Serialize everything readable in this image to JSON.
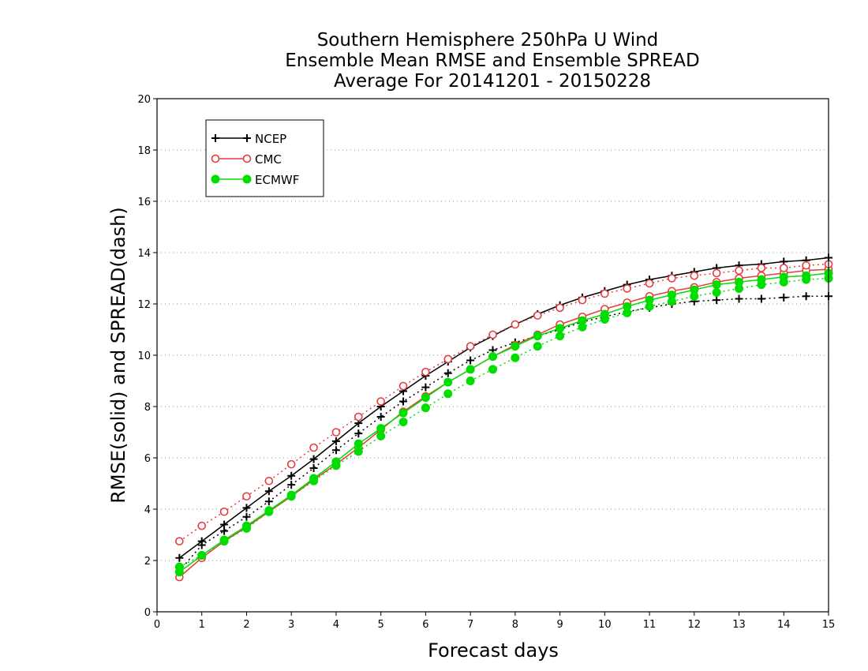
{
  "chart_data": {
    "type": "line",
    "title_lines": [
      "Southern Hemisphere 250hPa U Wind",
      "Ensemble Mean RMSE and Ensemble SPREAD",
      "Average For 20141201 - 20150228"
    ],
    "xlabel": "Forecast days",
    "ylabel": "RMSE(solid) and SPREAD(dash)",
    "xlim": [
      0,
      15
    ],
    "ylim": [
      0,
      20
    ],
    "xticks": [
      0,
      1,
      2,
      3,
      4,
      5,
      6,
      7,
      8,
      9,
      10,
      11,
      12,
      13,
      14,
      15
    ],
    "yticks": [
      0,
      2,
      4,
      6,
      8,
      10,
      12,
      14,
      16,
      18,
      20
    ],
    "grid": "horizontal dotted",
    "legend_position": "top-left",
    "x": [
      0.5,
      1,
      1.5,
      2,
      2.5,
      3,
      3.5,
      4,
      4.5,
      5,
      5.5,
      6,
      6.5,
      7,
      7.5,
      8,
      8.5,
      9,
      9.5,
      10,
      10.5,
      11,
      11.5,
      12,
      12.5,
      13,
      13.5,
      14,
      14.5,
      15
    ],
    "series": [
      {
        "name": "NCEP",
        "metric": "rmse",
        "style": "solid",
        "color": "#000000",
        "marker": "plus",
        "values": [
          2.1,
          2.75,
          3.4,
          4.05,
          4.7,
          5.3,
          5.95,
          6.65,
          7.35,
          8.0,
          8.6,
          9.2,
          9.75,
          10.3,
          10.75,
          11.2,
          11.6,
          11.95,
          12.25,
          12.5,
          12.75,
          12.95,
          13.1,
          13.25,
          13.4,
          13.5,
          13.55,
          13.65,
          13.7,
          13.8
        ]
      },
      {
        "name": "NCEP",
        "metric": "spread",
        "style": "dash",
        "color": "#000000",
        "marker": "plus",
        "values": [
          1.6,
          2.6,
          3.15,
          3.7,
          4.3,
          4.95,
          5.6,
          6.3,
          6.95,
          7.6,
          8.2,
          8.75,
          9.3,
          9.8,
          10.2,
          10.5,
          10.75,
          11.0,
          11.3,
          11.5,
          11.7,
          11.85,
          12.0,
          12.1,
          12.15,
          12.2,
          12.2,
          12.25,
          12.3,
          12.3
        ]
      },
      {
        "name": "CMC",
        "metric": "rmse",
        "style": "solid",
        "color": "#e63c3c",
        "marker": "circle-open",
        "values": [
          1.35,
          2.1,
          2.75,
          3.3,
          3.9,
          4.5,
          5.15,
          5.75,
          6.4,
          7.1,
          7.8,
          8.4,
          8.95,
          9.45,
          9.95,
          10.4,
          10.8,
          11.2,
          11.5,
          11.8,
          12.05,
          12.3,
          12.5,
          12.65,
          12.85,
          13.0,
          13.1,
          13.2,
          13.3,
          13.35
        ]
      },
      {
        "name": "CMC",
        "metric": "spread",
        "style": "dash",
        "color": "#e63c3c",
        "marker": "circle-open",
        "values": [
          2.75,
          3.35,
          3.9,
          4.5,
          5.1,
          5.75,
          6.4,
          7.0,
          7.6,
          8.2,
          8.8,
          9.35,
          9.85,
          10.35,
          10.8,
          11.2,
          11.55,
          11.85,
          12.15,
          12.4,
          12.6,
          12.8,
          13.0,
          13.1,
          13.2,
          13.3,
          13.4,
          13.4,
          13.5,
          13.55
        ]
      },
      {
        "name": "ECMWF",
        "metric": "rmse",
        "style": "solid",
        "color": "#00dd00",
        "marker": "circle-filled",
        "values": [
          1.55,
          2.2,
          2.8,
          3.35,
          3.95,
          4.55,
          5.2,
          5.85,
          6.55,
          7.15,
          7.75,
          8.35,
          8.95,
          9.45,
          9.95,
          10.35,
          10.75,
          11.05,
          11.35,
          11.6,
          11.9,
          12.15,
          12.35,
          12.55,
          12.75,
          12.85,
          12.95,
          13.05,
          13.1,
          13.2
        ]
      },
      {
        "name": "ECMWF",
        "metric": "spread",
        "style": "dash",
        "color": "#00dd00",
        "marker": "circle-filled",
        "values": [
          1.75,
          2.2,
          2.75,
          3.25,
          3.9,
          4.5,
          5.1,
          5.7,
          6.25,
          6.85,
          7.4,
          7.95,
          8.5,
          9.0,
          9.45,
          9.9,
          10.35,
          10.75,
          11.1,
          11.4,
          11.65,
          11.9,
          12.1,
          12.3,
          12.45,
          12.6,
          12.75,
          12.85,
          12.95,
          13.0
        ]
      }
    ],
    "legend": [
      {
        "name": "NCEP",
        "color": "#000000",
        "marker": "plus"
      },
      {
        "name": "CMC",
        "color": "#e63c3c",
        "marker": "circle-open"
      },
      {
        "name": "ECMWF",
        "color": "#00dd00",
        "marker": "circle-filled"
      }
    ]
  }
}
